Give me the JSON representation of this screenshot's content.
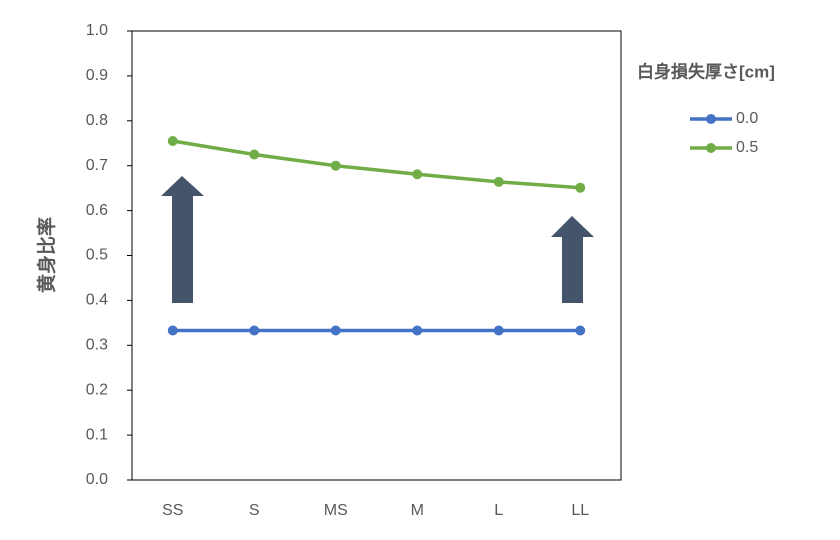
{
  "chart_data": {
    "type": "line",
    "y_label": "黄身比率",
    "legend_title": "白身損失厚さ[cm]",
    "categories": [
      "SS",
      "S",
      "MS",
      "M",
      "L",
      "LL"
    ],
    "series": [
      {
        "name": "0.0",
        "color": "#4472c4",
        "values": [
          0.333,
          0.333,
          0.333,
          0.333,
          0.333,
          0.333
        ]
      },
      {
        "name": "0.5",
        "color": "#70ad47",
        "values": [
          0.755,
          0.725,
          0.7,
          0.681,
          0.664,
          0.651
        ]
      }
    ],
    "ylim": [
      0,
      1
    ],
    "yticks": [
      {
        "value": 0,
        "label": "0.0"
      },
      0.1,
      0.2,
      0.3,
      0.4,
      0.5,
      0.6,
      0.7,
      0.8,
      0.9,
      {
        "value": 1,
        "label": "1.0"
      }
    ],
    "legend_position": "right"
  }
}
